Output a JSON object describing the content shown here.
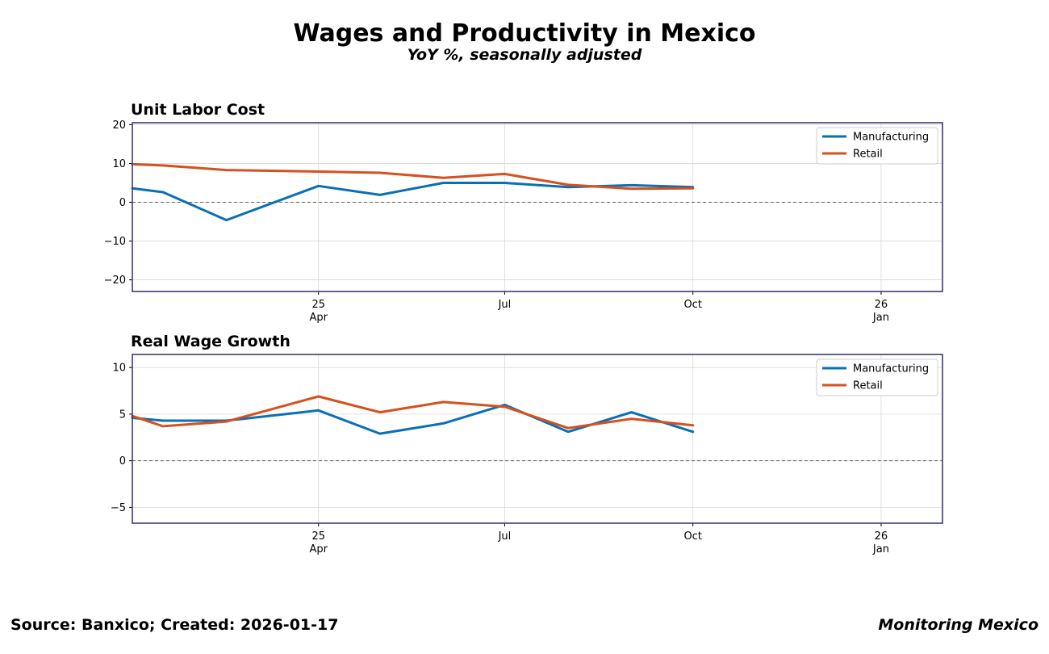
{
  "header": {
    "title": "Wages and Productivity in Mexico",
    "subtitle": "YoY %, seasonally adjusted"
  },
  "footer": {
    "source": "Source: Banxico; Created: 2026-01-17",
    "brand": "Monitoring Mexico"
  },
  "colors": {
    "manufacturing": "#0a6fb5",
    "retail": "#d5511d",
    "frame": "#3d3a7a",
    "grid": "#d9d9d9",
    "zero_line": "#666666"
  },
  "chart_data": [
    {
      "type": "line",
      "title": "Unit Labor Cost",
      "x": [
        "2024-12",
        "2025-01",
        "2025-02",
        "2025-04",
        "2025-05",
        "2025-06",
        "2025-07",
        "2025-08",
        "2025-09",
        "2025-10"
      ],
      "xlim": [
        "2024-12-31",
        "2026-01-31"
      ],
      "x_ticks": [
        {
          "date": "2025-04-01",
          "label": "25\nApr"
        },
        {
          "date": "2025-07-01",
          "label": "Jul"
        },
        {
          "date": "2025-10-01",
          "label": "Oct"
        },
        {
          "date": "2026-01-01",
          "label": "26\nJan"
        }
      ],
      "series": [
        {
          "name": "Manufacturing",
          "color": "#0a6fb5",
          "points": [
            [
              "2024-12-31",
              3.6
            ],
            [
              "2025-01-15",
              2.6
            ],
            [
              "2025-02-15",
              -4.6
            ],
            [
              "2025-04-01",
              4.2
            ],
            [
              "2025-05-01",
              1.9
            ],
            [
              "2025-06-01",
              5.0
            ],
            [
              "2025-07-01",
              5.0
            ],
            [
              "2025-08-01",
              3.9
            ],
            [
              "2025-09-01",
              4.4
            ],
            [
              "2025-10-01",
              3.9
            ]
          ]
        },
        {
          "name": "Retail",
          "color": "#d5511d",
          "points": [
            [
              "2024-12-31",
              9.8
            ],
            [
              "2025-01-15",
              9.5
            ],
            [
              "2025-02-15",
              8.3
            ],
            [
              "2025-04-01",
              7.9
            ],
            [
              "2025-05-01",
              7.6
            ],
            [
              "2025-06-01",
              6.3
            ],
            [
              "2025-07-01",
              7.3
            ],
            [
              "2025-08-01",
              4.5
            ],
            [
              "2025-09-01",
              3.5
            ],
            [
              "2025-10-01",
              3.6
            ]
          ]
        }
      ],
      "ylim": [
        -23,
        20.5
      ],
      "yticks": [
        20,
        10,
        0,
        -10,
        -20
      ],
      "ytick_labels": [
        "20",
        "10",
        "0",
        "−10",
        "−20"
      ],
      "legend": "top-right",
      "grid": true,
      "zero_line": true
    },
    {
      "type": "line",
      "title": "Real Wage Growth",
      "x": [
        "2024-12",
        "2025-01",
        "2025-02",
        "2025-04",
        "2025-05",
        "2025-06",
        "2025-07",
        "2025-08",
        "2025-09",
        "2025-10"
      ],
      "xlim": [
        "2024-12-31",
        "2026-01-31"
      ],
      "x_ticks": [
        {
          "date": "2025-04-01",
          "label": "25\nApr"
        },
        {
          "date": "2025-07-01",
          "label": "Jul"
        },
        {
          "date": "2025-10-01",
          "label": "Oct"
        },
        {
          "date": "2026-01-01",
          "label": "26\nJan"
        }
      ],
      "series": [
        {
          "name": "Manufacturing",
          "color": "#0a6fb5",
          "points": [
            [
              "2024-12-31",
              4.6
            ],
            [
              "2025-01-15",
              4.3
            ],
            [
              "2025-02-15",
              4.3
            ],
            [
              "2025-04-01",
              5.4
            ],
            [
              "2025-05-01",
              2.9
            ],
            [
              "2025-06-01",
              4.0
            ],
            [
              "2025-07-01",
              6.0
            ],
            [
              "2025-08-01",
              3.1
            ],
            [
              "2025-09-01",
              5.2
            ],
            [
              "2025-10-01",
              3.1
            ]
          ]
        },
        {
          "name": "Retail",
          "color": "#d5511d",
          "points": [
            [
              "2024-12-31",
              4.8
            ],
            [
              "2025-01-15",
              3.7
            ],
            [
              "2025-02-15",
              4.2
            ],
            [
              "2025-04-01",
              6.9
            ],
            [
              "2025-05-01",
              5.2
            ],
            [
              "2025-06-01",
              6.3
            ],
            [
              "2025-07-01",
              5.8
            ],
            [
              "2025-08-01",
              3.5
            ],
            [
              "2025-09-01",
              4.5
            ],
            [
              "2025-10-01",
              3.8
            ]
          ]
        }
      ],
      "ylim": [
        -6.7,
        11.4
      ],
      "yticks": [
        10,
        5,
        0,
        -5
      ],
      "ytick_labels": [
        "10",
        "5",
        "0",
        "−5"
      ],
      "legend": "top-right",
      "grid": true,
      "zero_line": true
    }
  ]
}
